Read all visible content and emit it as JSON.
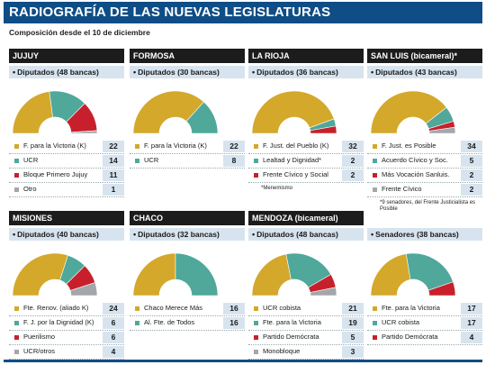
{
  "header": {
    "title": "RADIOGRAFÍA DE LAS NUEVAS LEGISLATURAS"
  },
  "subtitle": "Composición desde el 10 de diciembre",
  "colors": {
    "party_yellow": "#d4a82a",
    "party_teal": "#4fa89a",
    "party_red": "#c7202c",
    "party_gray": "#a4a6ab",
    "header_blue": "#0f4d86"
  },
  "chart_data": [
    {
      "type": "pie",
      "province": "JUJUY",
      "subtitle": "Diputados (48 bancas)",
      "series": [
        {
          "name": "F. para la Victoria (K)",
          "value": 22,
          "color": "#d4a82a"
        },
        {
          "name": "UCR",
          "value": 14,
          "color": "#4fa89a"
        },
        {
          "name": "Bloque Primero Jujuy",
          "value": 11,
          "color": "#c7202c"
        },
        {
          "name": "Otro",
          "value": 1,
          "color": "#a4a6ab"
        }
      ]
    },
    {
      "type": "pie",
      "province": "FORMOSA",
      "subtitle": "Diputados (30 bancas)",
      "series": [
        {
          "name": "F. para la Victoria (K)",
          "value": 22,
          "color": "#d4a82a"
        },
        {
          "name": "UCR",
          "value": 8,
          "color": "#4fa89a"
        }
      ]
    },
    {
      "type": "pie",
      "province": "LA RIOJA",
      "subtitle": "Diputados (36 bancas)",
      "series": [
        {
          "name": "F. Just. del Pueblo (K)",
          "value": 32,
          "color": "#d4a82a"
        },
        {
          "name": "Lealtad y Dignidad*",
          "value": 2,
          "color": "#4fa89a"
        },
        {
          "name": "Frente Cívico y Social",
          "value": 2,
          "color": "#c7202c"
        }
      ],
      "note": "*Menemismo"
    },
    {
      "type": "pie",
      "province": "SAN LUIS (bicameral)*",
      "subtitle": "Diputados (43 bancas)",
      "series": [
        {
          "name": "F. Just. es Posible",
          "value": 34,
          "color": "#d4a82a"
        },
        {
          "name": "Acuerdo Cívico y Soc.",
          "value": 5,
          "color": "#4fa89a"
        },
        {
          "name": "Más Vocación Sanluis.",
          "value": 2,
          "color": "#c7202c"
        },
        {
          "name": "Frente Cívico",
          "value": 2,
          "color": "#a4a6ab"
        }
      ],
      "note": "*9 senadores, del Frente Justicialista es Posible"
    },
    {
      "type": "pie",
      "province": "MISIONES",
      "subtitle": "Diputados (40 bancas)",
      "series": [
        {
          "name": "Fte. Renov. (aliado K)",
          "value": 24,
          "color": "#d4a82a"
        },
        {
          "name": "F. J. por la Dignidad (K)",
          "value": 6,
          "color": "#4fa89a"
        },
        {
          "name": "Puerilismo",
          "value": 6,
          "color": "#c7202c"
        },
        {
          "name": "UCR/otros",
          "value": 4,
          "color": "#a4a6ab"
        }
      ]
    },
    {
      "type": "pie",
      "province": "CHACO",
      "subtitle": "Diputados (32 bancas)",
      "series": [
        {
          "name": "Chaco Merece Más",
          "value": 16,
          "color": "#d4a82a"
        },
        {
          "name": "Al. Fte. de Todos",
          "value": 16,
          "color": "#4fa89a"
        }
      ]
    },
    {
      "type": "pie",
      "province": "MENDOZA (bicameral)",
      "subtitle": "Diputados (48 bancas)",
      "series": [
        {
          "name": "UCR cobista",
          "value": 21,
          "color": "#d4a82a"
        },
        {
          "name": "Fte. para la Victoria",
          "value": 19,
          "color": "#4fa89a"
        },
        {
          "name": "Partido Demócrata",
          "value": 5,
          "color": "#c7202c"
        },
        {
          "name": "Monobloque",
          "value": 3,
          "color": "#a4a6ab"
        }
      ]
    },
    {
      "type": "pie",
      "province": "",
      "subtitle": "Senadores (38 bancas)",
      "series": [
        {
          "name": "Fte. para la Victoria",
          "value": 17,
          "color": "#d4a82a"
        },
        {
          "name": "UCR cobista",
          "value": 17,
          "color": "#4fa89a"
        },
        {
          "name": "Partido Demócrata",
          "value": 4,
          "color": "#c7202c"
        }
      ]
    }
  ]
}
